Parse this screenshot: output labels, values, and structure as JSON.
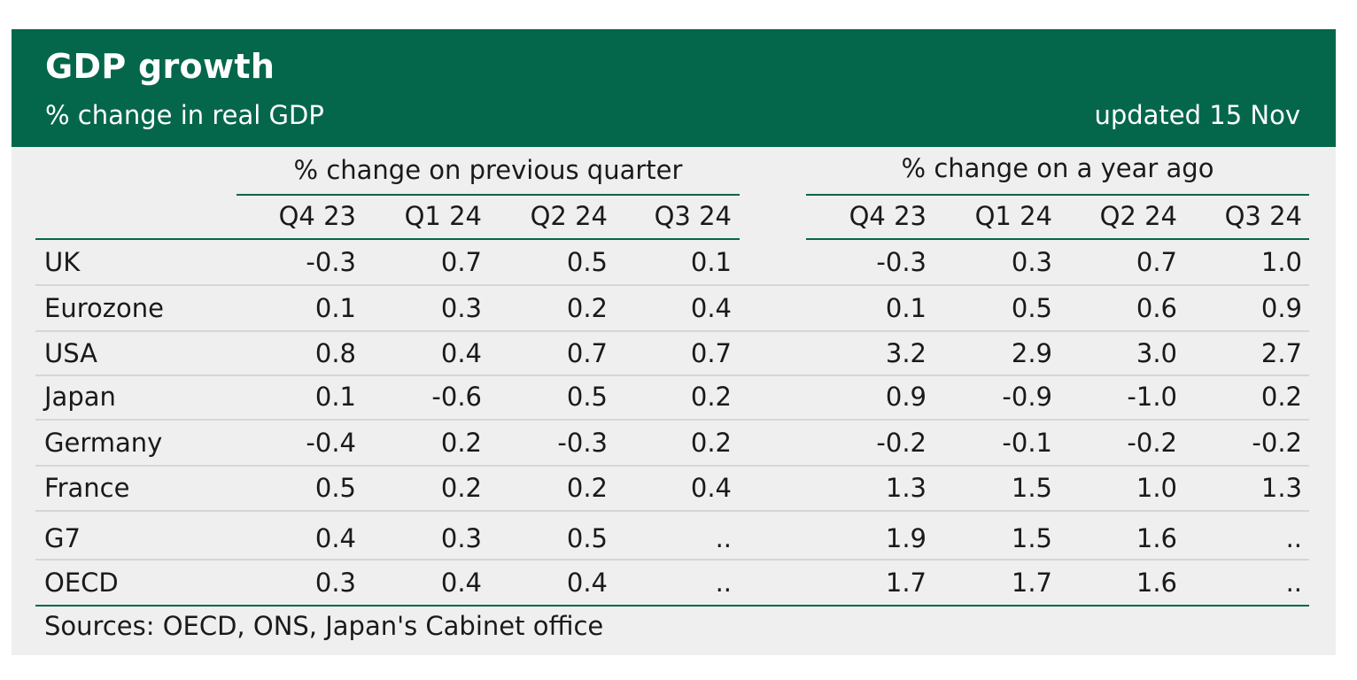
{
  "header": {
    "title": "GDP growth",
    "subtitle": "% change in real GDP",
    "updated": "updated 15 Nov"
  },
  "groups": {
    "quarter": "% change on previous quarter",
    "year": "% change on a year ago"
  },
  "columns": [
    "Q4 23",
    "Q1 24",
    "Q2 24",
    "Q3 24",
    "Q4 23",
    "Q1 24",
    "Q2 24",
    "Q3 24"
  ],
  "rows": [
    {
      "label": "UK",
      "values": [
        "-0.3",
        "0.7",
        "0.5",
        "0.1",
        "-0.3",
        "0.3",
        "0.7",
        "1.0"
      ]
    },
    {
      "label": "Eurozone",
      "values": [
        "0.1",
        "0.3",
        "0.2",
        "0.4",
        "0.1",
        "0.5",
        "0.6",
        "0.9"
      ]
    },
    {
      "label": "USA",
      "values": [
        "0.8",
        "0.4",
        "0.7",
        "0.7",
        "3.2",
        "2.9",
        "3.0",
        "2.7"
      ]
    },
    {
      "label": "Japan",
      "values": [
        "0.1",
        "-0.6",
        "0.5",
        "0.2",
        "0.9",
        "-0.9",
        "-1.0",
        "0.2"
      ]
    },
    {
      "label": "Germany",
      "values": [
        "-0.4",
        "0.2",
        "-0.3",
        "0.2",
        "-0.2",
        "-0.1",
        "-0.2",
        "-0.2"
      ]
    },
    {
      "label": "France",
      "values": [
        "0.5",
        "0.2",
        "0.2",
        "0.4",
        "1.3",
        "1.5",
        "1.0",
        "1.3"
      ]
    },
    {
      "label": "G7",
      "values": [
        "0.4",
        "0.3",
        "0.5",
        "..",
        "1.9",
        "1.5",
        "1.6",
        ".."
      ]
    },
    {
      "label": "OECD",
      "values": [
        "0.3",
        "0.4",
        "0.4",
        "..",
        "1.7",
        "1.7",
        "1.6",
        ".."
      ]
    }
  ],
  "source": "Sources: OECD, ONS, Japan's Cabinet office",
  "colors": {
    "header_bg": "#04674b",
    "panel_bg": "#efefef",
    "rule": "#04674b",
    "gridline": "#d6d6d6"
  }
}
